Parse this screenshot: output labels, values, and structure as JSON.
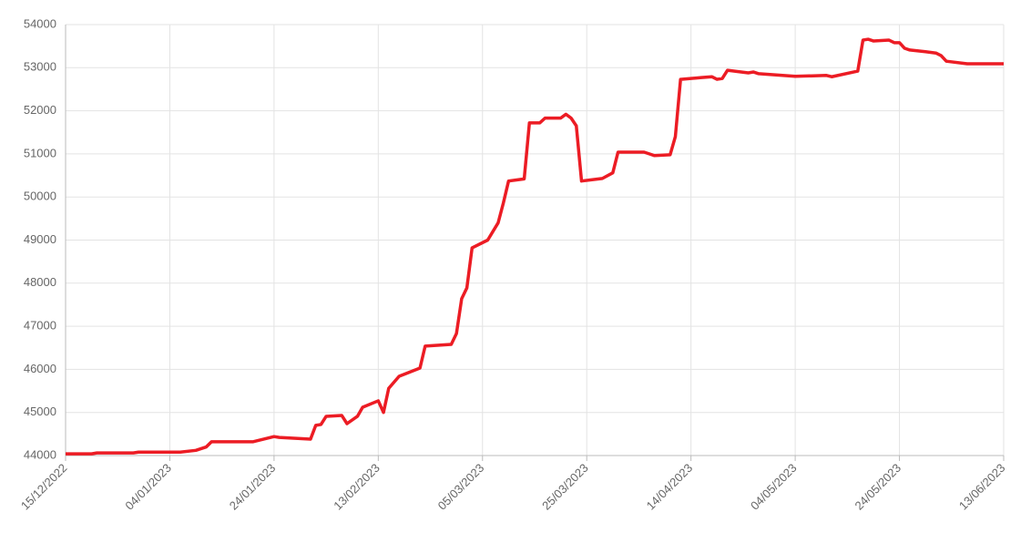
{
  "chart_data": {
    "type": "line",
    "color": "#ec1c24",
    "grid": true,
    "x": [
      "2022-12-15",
      "2022-12-20",
      "2022-12-21",
      "2022-12-28",
      "2022-12-29",
      "2023-01-06",
      "2023-01-09",
      "2023-01-11",
      "2023-01-12",
      "2023-01-20",
      "2023-01-24",
      "2023-01-25",
      "2023-01-31",
      "2023-02-01",
      "2023-02-02",
      "2023-02-03",
      "2023-02-06",
      "2023-02-07",
      "2023-02-09",
      "2023-02-10",
      "2023-02-13",
      "2023-02-14",
      "2023-02-15",
      "2023-02-17",
      "2023-02-21",
      "2023-02-22",
      "2023-02-27",
      "2023-02-28",
      "2023-03-01",
      "2023-03-02",
      "2023-03-03",
      "2023-03-06",
      "2023-03-08",
      "2023-03-09",
      "2023-03-10",
      "2023-03-13",
      "2023-03-14",
      "2023-03-16",
      "2023-03-17",
      "2023-03-20",
      "2023-03-21",
      "2023-03-22",
      "2023-03-23",
      "2023-03-24",
      "2023-03-28",
      "2023-03-30",
      "2023-03-31",
      "2023-04-05",
      "2023-04-06",
      "2023-04-07",
      "2023-04-10",
      "2023-04-11",
      "2023-04-12",
      "2023-04-16",
      "2023-04-18",
      "2023-04-19",
      "2023-04-20",
      "2023-04-21",
      "2023-04-25",
      "2023-04-26",
      "2023-04-27",
      "2023-05-04",
      "2023-05-10",
      "2023-05-11",
      "2023-05-16",
      "2023-05-17",
      "2023-05-18",
      "2023-05-19",
      "2023-05-22",
      "2023-05-23",
      "2023-05-24",
      "2023-05-25",
      "2023-05-26",
      "2023-05-29",
      "2023-05-31",
      "2023-06-01",
      "2023-06-02",
      "2023-06-06",
      "2023-06-13"
    ],
    "values": [
      44040,
      44040,
      44060,
      44060,
      44080,
      44080,
      44120,
      44200,
      44320,
      44320,
      44440,
      44420,
      44380,
      44700,
      44720,
      44910,
      44930,
      44740,
      44910,
      45120,
      45270,
      45000,
      45560,
      45840,
      46030,
      46540,
      46580,
      46830,
      47640,
      47890,
      48820,
      49000,
      49400,
      49860,
      50370,
      50420,
      51720,
      51720,
      51830,
      51830,
      51920,
      51830,
      51650,
      50370,
      50430,
      50560,
      51040,
      51040,
      51000,
      50960,
      50980,
      51400,
      52730,
      52770,
      52790,
      52730,
      52750,
      52940,
      52880,
      52900,
      52860,
      52800,
      52820,
      52790,
      52920,
      53640,
      53660,
      53620,
      53640,
      53580,
      53580,
      53450,
      53410,
      53370,
      53340,
      53280,
      53150,
      53090,
      53090
    ],
    "xlim": [
      "2022-12-15",
      "2023-06-13"
    ],
    "xticks": [
      {
        "value": "2022-12-15",
        "label": "15/12/2022"
      },
      {
        "value": "2023-01-04",
        "label": "04/01/2023"
      },
      {
        "value": "2023-01-24",
        "label": "24/01/2023"
      },
      {
        "value": "2023-02-13",
        "label": "13/02/2023"
      },
      {
        "value": "2023-03-05",
        "label": "05/03/2023"
      },
      {
        "value": "2023-03-25",
        "label": "25/03/2023"
      },
      {
        "value": "2023-04-14",
        "label": "14/04/2023"
      },
      {
        "value": "2023-05-04",
        "label": "04/05/2023"
      },
      {
        "value": "2023-05-24",
        "label": "24/05/2023"
      },
      {
        "value": "2023-06-13",
        "label": "13/06/2023"
      }
    ],
    "ylim": [
      44000,
      54000
    ],
    "yticks": [
      44000,
      45000,
      46000,
      47000,
      48000,
      49000,
      50000,
      51000,
      52000,
      53000,
      54000
    ]
  }
}
